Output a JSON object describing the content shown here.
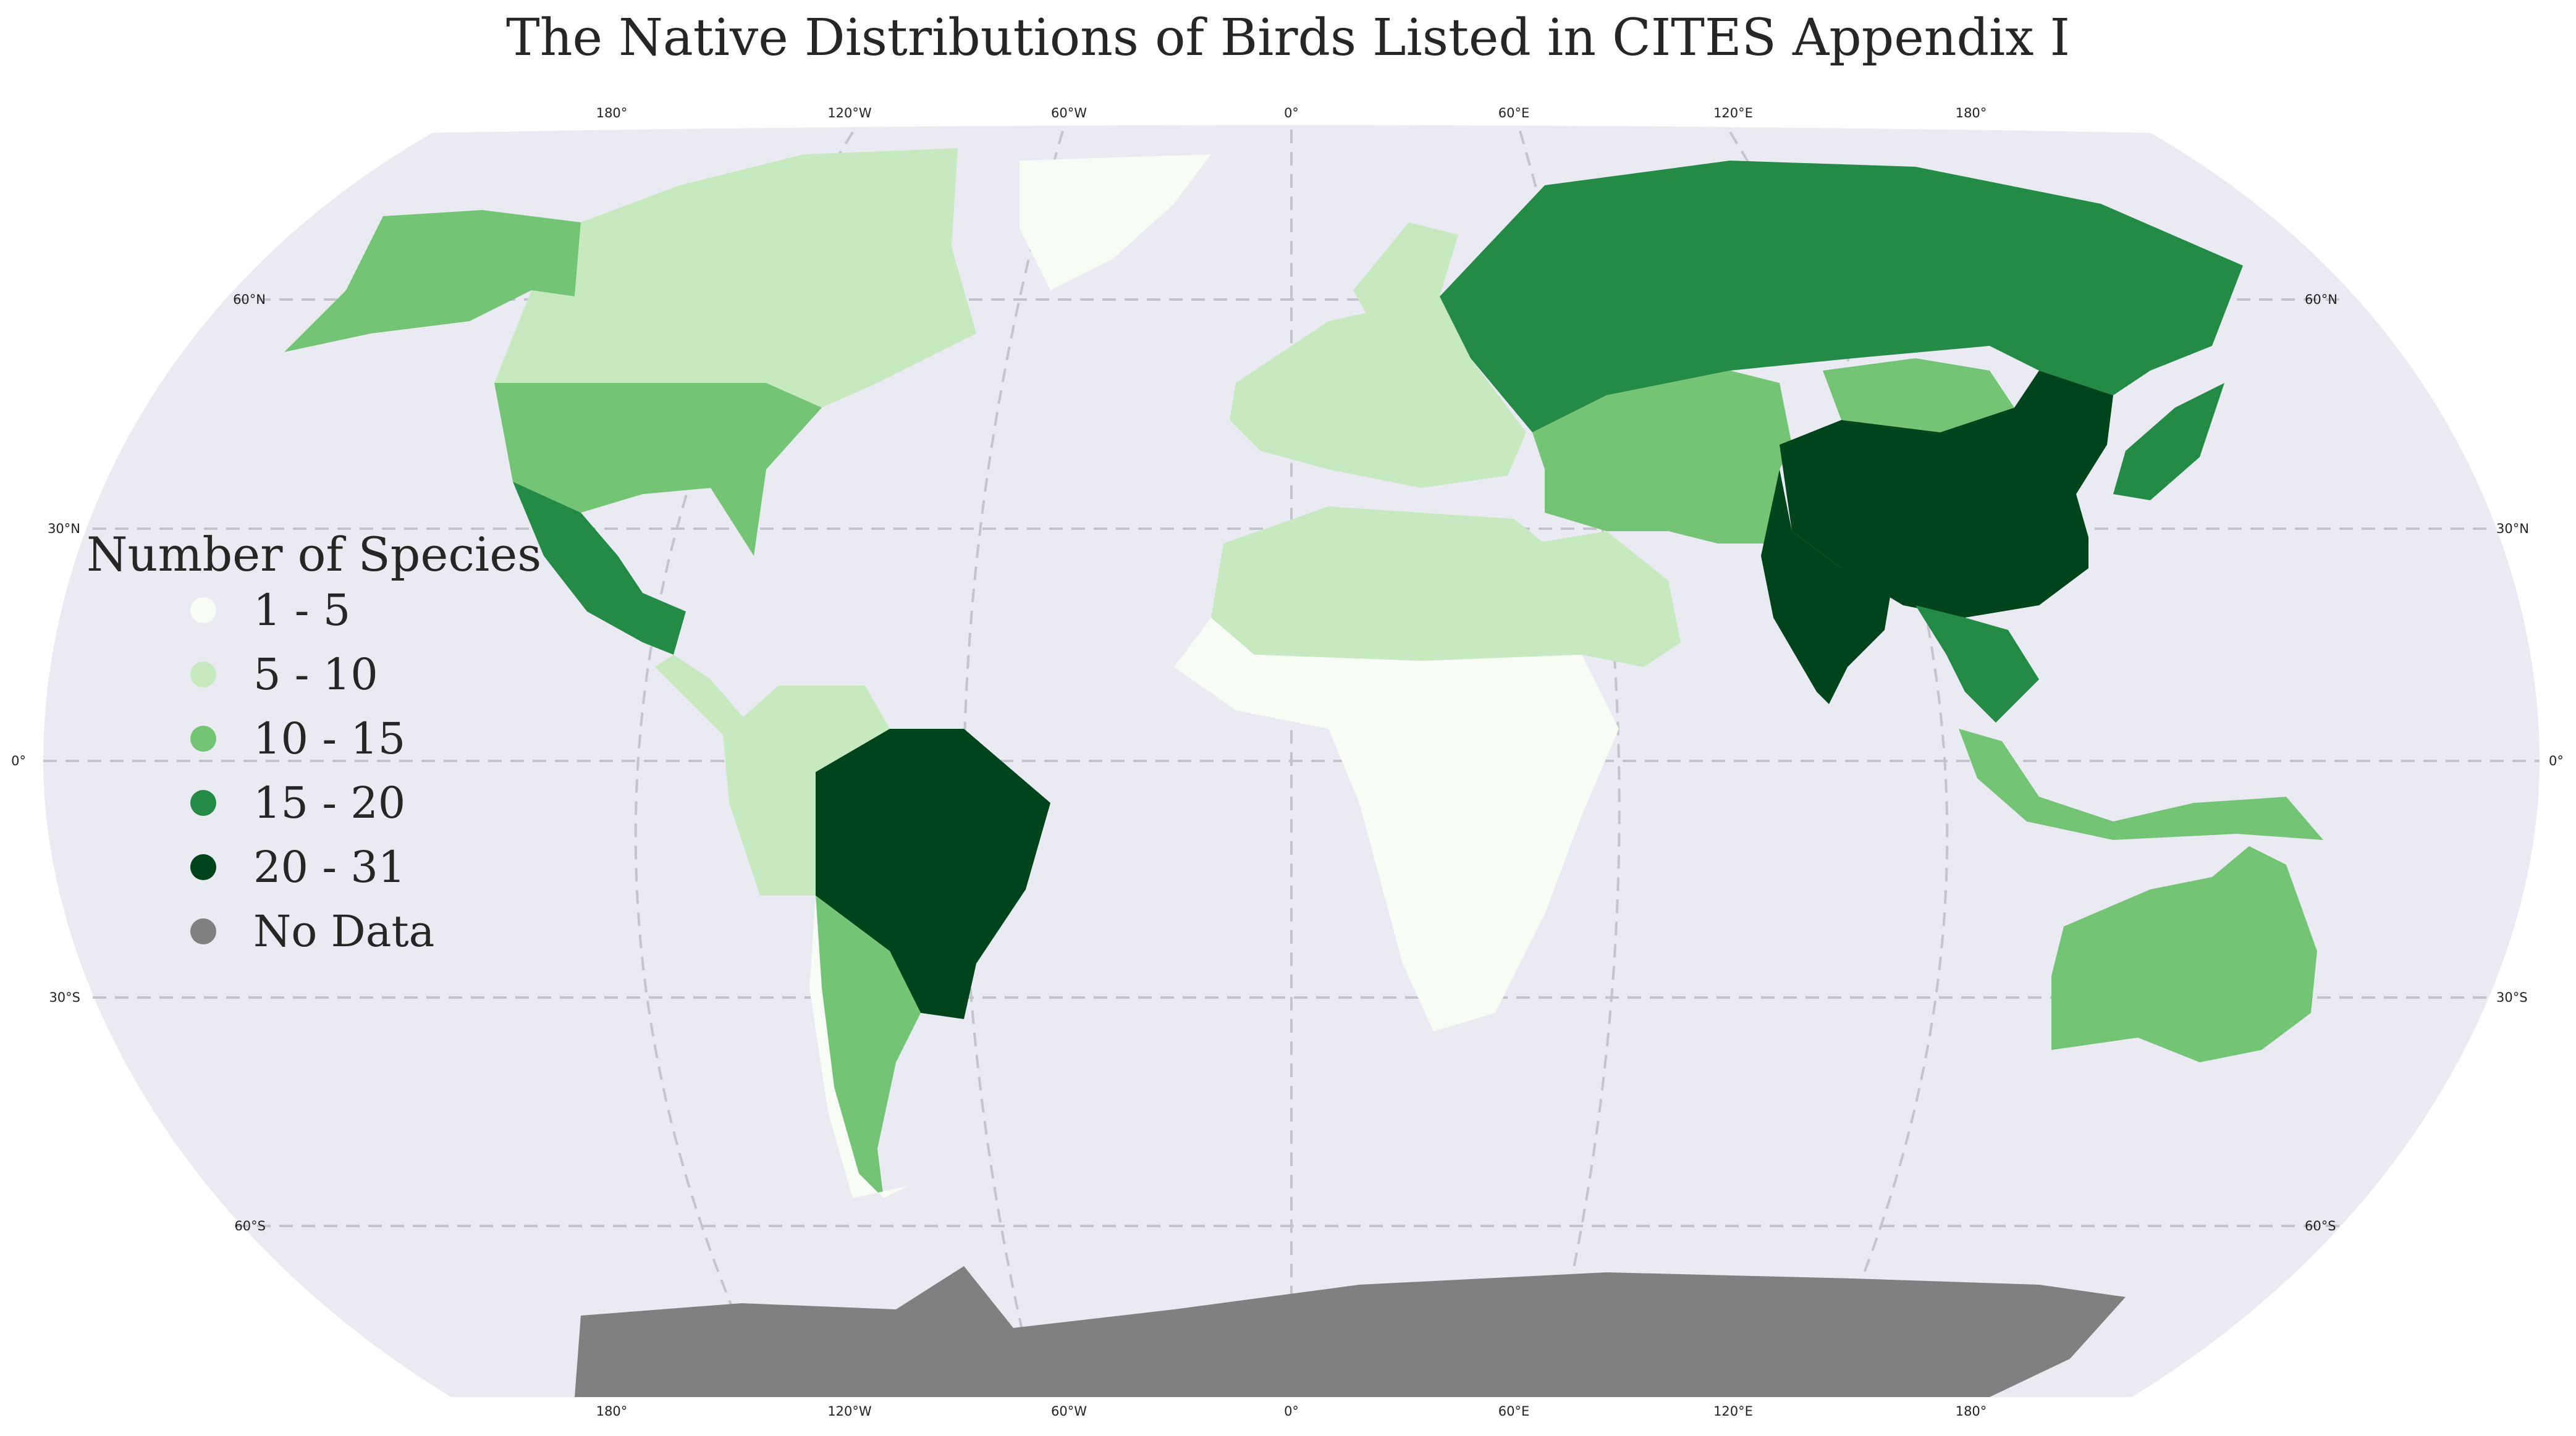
{
  "title": "The Native Distributions of Birds Listed in CITES Appendix I",
  "legend": {
    "title": "Number of Species",
    "items": [
      {
        "label": "1 - 5",
        "color": "#f7fcf5"
      },
      {
        "label": "5 - 10",
        "color": "#c7e9c0"
      },
      {
        "label": "10 - 15",
        "color": "#74c476"
      },
      {
        "label": "15 - 20",
        "color": "#238b45"
      },
      {
        "label": "20 - 31",
        "color": "#00441b"
      },
      {
        "label": "No Data",
        "color": "#808080"
      }
    ]
  },
  "map": {
    "ocean_color": "#eaeaf2",
    "gridline_color": "#c4c4cc",
    "lon_ticks": [
      "180°",
      "120°W",
      "60°W",
      "0°",
      "60°E",
      "120°E",
      "180°"
    ],
    "lat_ticks": [
      "60°N",
      "30°N",
      "0°",
      "30°S",
      "60°S"
    ]
  },
  "regions": [
    {
      "name": "Alaska",
      "color": "#74c476"
    },
    {
      "name": "Canada",
      "color": "#c7e9c0"
    },
    {
      "name": "Greenland",
      "color": "#f7fcf5"
    },
    {
      "name": "United States",
      "color": "#74c476"
    },
    {
      "name": "Mexico",
      "color": "#238b45"
    },
    {
      "name": "Central America",
      "color": "#c7e9c0"
    },
    {
      "name": "Northern South America",
      "color": "#c7e9c0"
    },
    {
      "name": "Brazil",
      "color": "#00441b"
    },
    {
      "name": "Argentina",
      "color": "#74c476"
    },
    {
      "name": "Chile",
      "color": "#f7fcf5"
    },
    {
      "name": "Europe",
      "color": "#c7e9c0"
    },
    {
      "name": "Scandinavia",
      "color": "#c7e9c0"
    },
    {
      "name": "North Africa",
      "color": "#c7e9c0"
    },
    {
      "name": "Sub-Saharan Africa",
      "color": "#f7fcf5"
    },
    {
      "name": "Arabia",
      "color": "#c7e9c0"
    },
    {
      "name": "Iran",
      "color": "#74c476"
    },
    {
      "name": "Russia",
      "color": "#238b45"
    },
    {
      "name": "Kazakhstan",
      "color": "#74c476"
    },
    {
      "name": "Mongolia",
      "color": "#74c476"
    },
    {
      "name": "China",
      "color": "#00441b"
    },
    {
      "name": "India",
      "color": "#00441b"
    },
    {
      "name": "Southeast Asia",
      "color": "#238b45"
    },
    {
      "name": "Japan",
      "color": "#238b45"
    },
    {
      "name": "Indonesia",
      "color": "#74c476"
    },
    {
      "name": "Australia",
      "color": "#74c476"
    },
    {
      "name": "Antarctica",
      "color": "#808080"
    }
  ]
}
